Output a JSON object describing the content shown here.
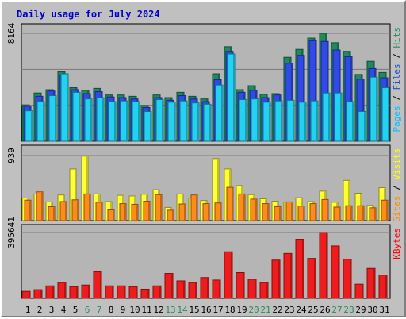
{
  "chart_data": {
    "type": "bar",
    "title": "Daily usage for July 2024",
    "categories": [
      "1",
      "2",
      "3",
      "4",
      "5",
      "6",
      "7",
      "8",
      "9",
      "10",
      "11",
      "12",
      "13",
      "14",
      "15",
      "16",
      "17",
      "18",
      "19",
      "20",
      "21",
      "22",
      "23",
      "24",
      "25",
      "26",
      "27",
      "28",
      "29",
      "30",
      "31"
    ],
    "weekend_color": "#2e8b57",
    "weekend_days": [
      "6",
      "7",
      "13",
      "14",
      "20",
      "21",
      "27",
      "28"
    ],
    "panels": [
      {
        "name": "top",
        "ymax": 8164,
        "ymax_label": "8164",
        "right_label_parts": [
          {
            "text": "Pages",
            "color": "#00bfff"
          },
          {
            "text": " / ",
            "color": "#000000"
          },
          {
            "text": "Files",
            "color": "#1e50c8"
          },
          {
            "text": " / ",
            "color": "#000000"
          },
          {
            "text": "Hits",
            "color": "#2e8b57"
          }
        ],
        "series": [
          {
            "name": "Hits",
            "color": "#1f8a5c",
            "values": [
              2750,
              3650,
              3900,
              5250,
              4050,
              3850,
              4000,
              3500,
              3500,
              3400,
              2700,
              3500,
              3300,
              3700,
              3400,
              3200,
              5100,
              7150,
              3900,
              4200,
              3550,
              3600,
              6350,
              6950,
              7800,
              8164,
              7450,
              6800,
              5050,
              6050,
              5200
            ]
          },
          {
            "name": "Files",
            "color": "#2f4ae6",
            "values": [
              2650,
              3400,
              3800,
              5000,
              3900,
              3600,
              3750,
              3350,
              3300,
              3200,
              2550,
              3300,
              3100,
              3450,
              3200,
              3000,
              4650,
              6800,
              3700,
              3850,
              3300,
              3500,
              5900,
              6500,
              7600,
              7550,
              6900,
              6400,
              4700,
              5500,
              4800
            ]
          },
          {
            "name": "Pages",
            "color": "#22d2f0",
            "values": [
              2300,
              3000,
              3450,
              5100,
              3700,
              3200,
              3300,
              3000,
              3050,
              3000,
              2250,
              3150,
              2950,
              3050,
              2900,
              2800,
              4250,
              6600,
              3150,
              3200,
              2950,
              3050,
              3100,
              2950,
              3050,
              3650,
              3650,
              3000,
              2250,
              4850,
              4050
            ]
          }
        ]
      },
      {
        "name": "middle",
        "ymax": 939,
        "ymax_label": "939",
        "right_label_parts": [
          {
            "text": "Sites",
            "color": "#ff8c00"
          },
          {
            "text": " / ",
            "color": "#000000"
          },
          {
            "text": "Visits",
            "color": "#ffff00"
          }
        ],
        "series": [
          {
            "name": "Visits",
            "color": "#ffff33",
            "values": [
              325,
              385,
              270,
              370,
              745,
              930,
              385,
              275,
              365,
              355,
              380,
              445,
              190,
              385,
              325,
              290,
              895,
              745,
              505,
              375,
              315,
              280,
              270,
              330,
              275,
              425,
              265,
              580,
              395,
              220,
              475
            ]
          },
          {
            "name": "Sites",
            "color": "#ff8c1a",
            "values": [
              295,
              415,
              200,
              275,
              300,
              385,
              265,
              155,
              245,
              235,
              280,
              375,
              150,
              240,
              370,
              245,
              255,
              480,
              385,
              310,
              245,
              200,
              270,
              210,
              245,
              305,
              195,
              215,
              215,
              185,
              295
            ]
          }
        ]
      },
      {
        "name": "bottom",
        "ymax": 395641,
        "ymax_label": "395641",
        "right_label_parts": [
          {
            "text": "KBytes",
            "color": "#ff0000"
          }
        ],
        "series": [
          {
            "name": "KBytes",
            "color": "#ee1c1c",
            "values": [
              42000,
              52000,
              75000,
              95000,
              70000,
              80000,
              160000,
              75000,
              75000,
              70000,
              55000,
              75000,
              150000,
              105000,
              95000,
              125000,
              110000,
              280000,
              155000,
              115000,
              95000,
              230000,
              270000,
              355000,
              240000,
              395641,
              315000,
              235000,
              85000,
              180000,
              140000
            ]
          }
        ]
      }
    ]
  }
}
